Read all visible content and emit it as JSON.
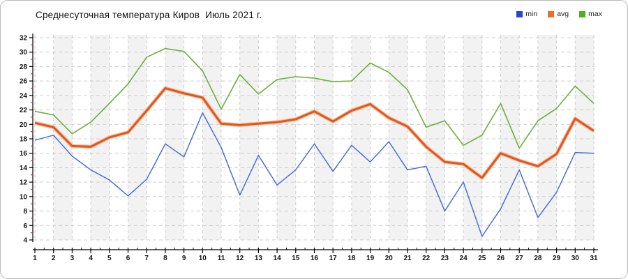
{
  "chart": {
    "title": "Среднесуточная температура Киров  Июль 2021 г."
  },
  "legend": {
    "items": [
      {
        "label": "min",
        "color": "#2547cf"
      },
      {
        "label": "avg",
        "color": "#e8702a"
      },
      {
        "label": "max",
        "color": "#4cb122"
      }
    ]
  },
  "chart_data": {
    "type": "line",
    "title": "Среднесуточная температура Киров  Июль 2021 г.",
    "xlabel": "",
    "ylabel": "",
    "x": [
      1,
      2,
      3,
      4,
      5,
      6,
      7,
      8,
      9,
      10,
      11,
      12,
      13,
      14,
      15,
      16,
      17,
      18,
      19,
      20,
      21,
      22,
      23,
      24,
      25,
      26,
      27,
      28,
      29,
      30,
      31
    ],
    "ylim": [
      4,
      32
    ],
    "ytick_step": 2,
    "grid": "dashed",
    "legend_position": "top-right",
    "series": [
      {
        "name": "min",
        "color": "#4a6fd8",
        "values": [
          17.8,
          18.5,
          15.6,
          13.7,
          12.3,
          10.1,
          12.4,
          17.3,
          15.5,
          21.6,
          16.8,
          10.2,
          15.7,
          11.6,
          13.7,
          17.3,
          13.5,
          17.1,
          14.8,
          17.6,
          13.7,
          14.2,
          8.0,
          12.0,
          4.5,
          8.3,
          13.7,
          7.1,
          10.6,
          16.1,
          16.0
        ]
      },
      {
        "name": "avg",
        "color": "#e2571b",
        "halo_color": "#f6c0a0",
        "values": [
          20.2,
          19.6,
          17.0,
          16.9,
          18.2,
          18.9,
          21.9,
          25.0,
          24.3,
          23.7,
          20.1,
          19.9,
          20.1,
          20.3,
          20.7,
          21.8,
          20.4,
          21.9,
          22.8,
          20.9,
          19.7,
          16.9,
          14.8,
          14.5,
          12.6,
          16.0,
          15.0,
          14.2,
          15.9,
          20.8,
          19.1
        ]
      },
      {
        "name": "max",
        "color": "#74b343",
        "values": [
          21.8,
          21.3,
          18.7,
          20.3,
          22.9,
          25.6,
          29.3,
          30.5,
          30.1,
          27.4,
          22.1,
          26.9,
          24.2,
          26.2,
          26.6,
          26.4,
          25.9,
          26.0,
          28.5,
          27.2,
          24.8,
          19.6,
          20.5,
          17.1,
          18.5,
          22.9,
          16.7,
          20.5,
          22.2,
          25.3,
          22.9
        ]
      }
    ],
    "axis_minor_tick_color_y": "#c23a2d",
    "stripe_color": "#f2f2f2"
  }
}
